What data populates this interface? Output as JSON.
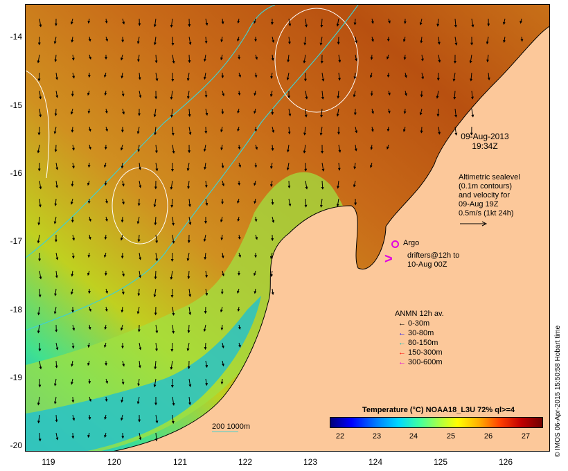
{
  "map": {
    "timestamp_line1": "09-Aug-2013",
    "timestamp_line2": "19:34Z",
    "lat_ticks": [
      "-14",
      "-15",
      "-16",
      "-17",
      "-18",
      "-19",
      "-20"
    ],
    "lon_ticks": [
      "119",
      "120",
      "121",
      "122",
      "123",
      "124",
      "125",
      "126"
    ],
    "altimetry_text": [
      "Altimetric sealevel",
      "(0.1m contours)",
      "and velocity for",
      "09-Aug 19Z",
      "0.5m/s (1kt 24h)"
    ],
    "argo_label": "Argo",
    "drifters_text": [
      "drifters@12h to",
      "10-Aug 00Z"
    ],
    "anmn": {
      "title": "ANMN 12h av.",
      "items": [
        {
          "label": "0-30m",
          "color": "#000000"
        },
        {
          "label": "30-80m",
          "color": "#0000ff"
        },
        {
          "label": "80-150m",
          "color": "#00c0c0"
        },
        {
          "label": "150-300m",
          "color": "#ff0000"
        },
        {
          "label": "300-600m",
          "color": "#e000e0"
        }
      ]
    },
    "colorbar": {
      "title": "Temperature (°C) NOAA18_L3U 72% ql>=4",
      "ticks": [
        "22",
        "23",
        "24",
        "25",
        "26",
        "27"
      ]
    },
    "isobath_label": "200  1000m",
    "credit": "© IMOS 06-Apr-2015 15:50:58 Hobart time",
    "colors": {
      "land": "#fcc89a",
      "warm_sst": "#c86410",
      "cool_sst": "#00c8e0",
      "isobath": "#40d0d0",
      "argo_drifter": "#e000e0"
    }
  }
}
